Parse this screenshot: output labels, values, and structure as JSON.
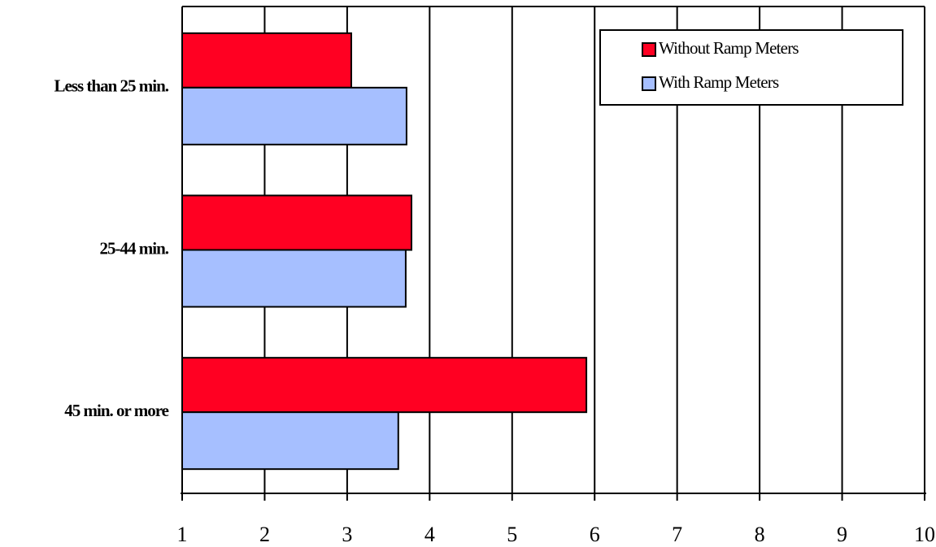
{
  "chart_data": {
    "type": "barh",
    "categories": [
      "Less than 25 min.",
      "25-44 min.",
      "45 min. or more"
    ],
    "series": [
      {
        "name": "Without Ramp Meters",
        "color": "#ff0022",
        "values": [
          3.05,
          3.78,
          5.9
        ]
      },
      {
        "name": "With Ramp Meters",
        "color": "#a6bfff",
        "values": [
          3.72,
          3.71,
          3.62
        ]
      }
    ],
    "xlim": [
      1,
      10
    ],
    "xticks": [
      1,
      2,
      3,
      4,
      5,
      6,
      7,
      8,
      9,
      10
    ],
    "grid": true
  }
}
